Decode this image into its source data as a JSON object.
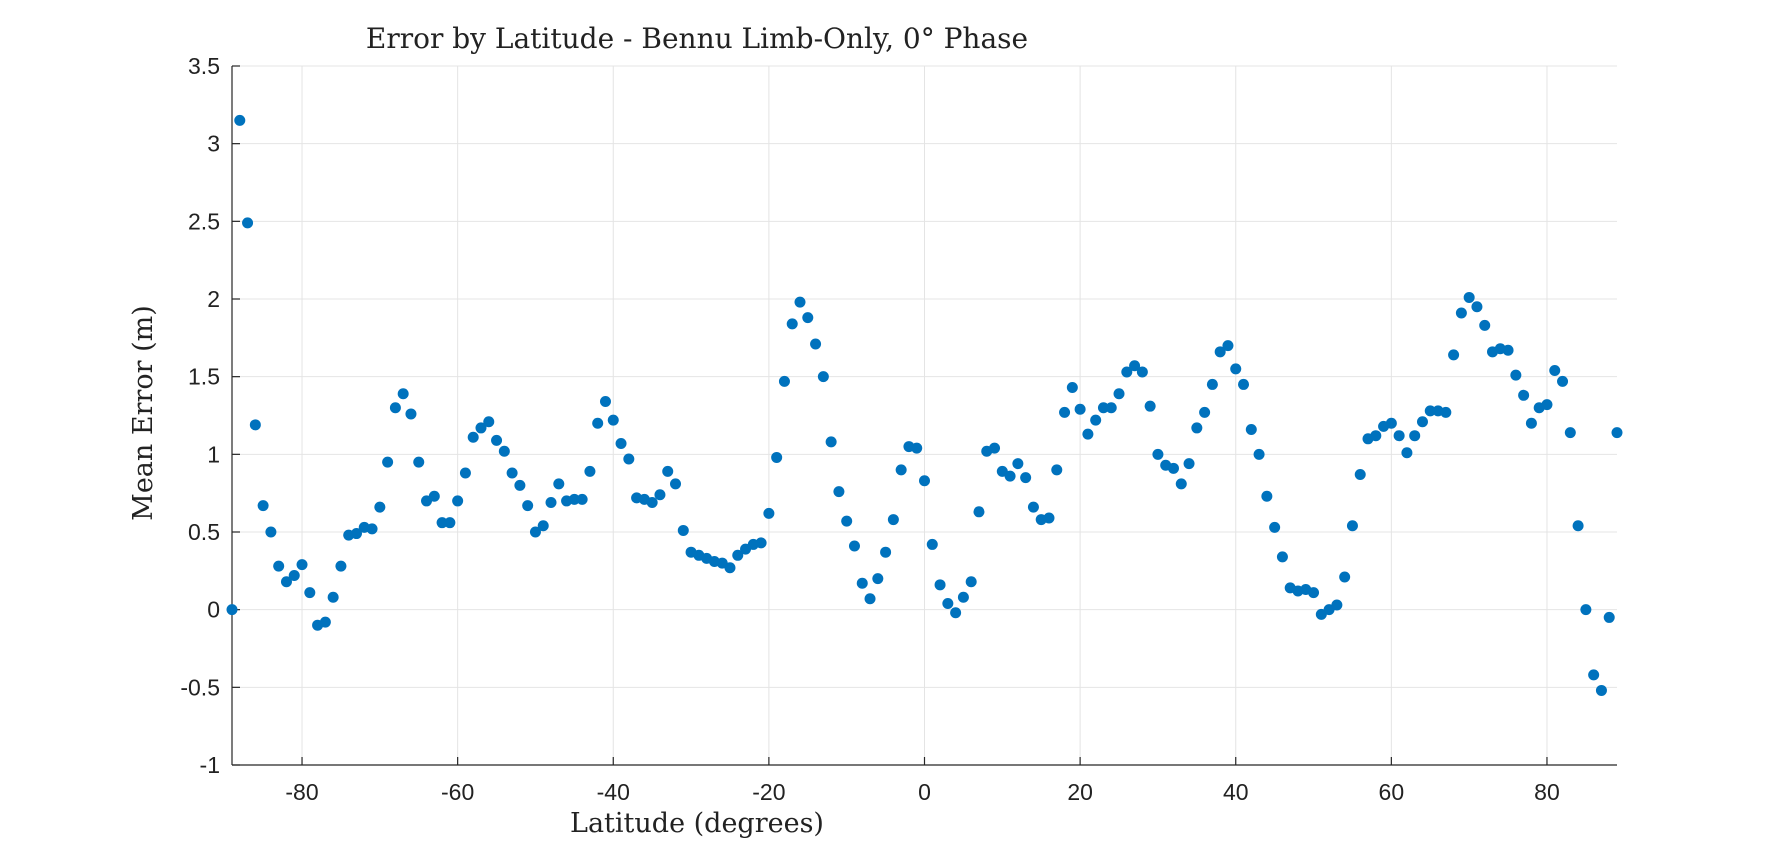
{
  "chart_data": {
    "type": "scatter",
    "title": "Error by Latitude - Bennu Limb-Only, 0° Phase",
    "xlabel": "Latitude (degrees)",
    "ylabel": "Mean Error (m)",
    "xlim": [
      -89,
      89
    ],
    "ylim": [
      -1,
      3.5
    ],
    "xticks": [
      -80,
      -60,
      -40,
      -20,
      0,
      20,
      40,
      60,
      80
    ],
    "yticks": [
      -1,
      -0.5,
      0,
      0.5,
      1,
      1.5,
      2,
      2.5,
      3,
      3.5
    ],
    "xtick_labels": [
      "-80",
      "-60",
      "-40",
      "-20",
      "0",
      "20",
      "40",
      "60",
      "80"
    ],
    "ytick_labels": [
      "-1",
      "-0.5",
      "0",
      "0.5",
      "1",
      "1.5",
      "2",
      "2.5",
      "3",
      "3.5"
    ],
    "grid": true,
    "color": "#0072BD",
    "series": [
      {
        "x": [
          -89,
          -88,
          -87,
          -86,
          -85,
          -84,
          -83,
          -82,
          -81,
          -80,
          -79,
          -78,
          -77,
          -76,
          -75,
          -74,
          -73,
          -72,
          -71,
          -70,
          -69,
          -68,
          -67,
          -66,
          -65,
          -64,
          -63,
          -62,
          -61,
          -60,
          -59,
          -58,
          -57,
          -56,
          -55,
          -54,
          -53,
          -52,
          -51,
          -50,
          -49,
          -48,
          -47,
          -46,
          -45,
          -44,
          -43,
          -42,
          -41,
          -40,
          -39,
          -38,
          -37,
          -36,
          -35,
          -34,
          -33,
          -32,
          -31,
          -30,
          -29,
          -28,
          -27,
          -26,
          -25,
          -24,
          -23,
          -22,
          -21,
          -20,
          -19,
          -18,
          -17,
          -16,
          -15,
          -14,
          -13,
          -12,
          -11,
          -10,
          -9,
          -8,
          -7,
          -6,
          -5,
          -4,
          -3,
          -2,
          -1,
          0,
          1,
          2,
          3,
          4,
          5,
          6,
          7,
          8,
          9,
          10,
          11,
          12,
          13,
          14,
          15,
          16,
          17,
          18,
          19,
          20,
          21,
          22,
          23,
          24,
          25,
          26,
          27,
          28,
          29,
          30,
          31,
          32,
          33,
          34,
          35,
          36,
          37,
          38,
          39,
          40,
          41,
          42,
          43,
          44,
          45,
          46,
          47,
          48,
          49,
          50,
          51,
          52,
          53,
          54,
          55,
          56,
          57,
          58,
          59,
          60,
          61,
          62,
          63,
          64,
          65,
          66,
          67,
          68,
          69,
          70,
          71,
          72,
          73,
          74,
          75,
          76,
          77,
          78,
          79,
          80,
          81,
          82,
          83,
          84,
          85,
          86,
          87,
          88,
          89
        ],
        "y": [
          0.0,
          3.15,
          2.49,
          1.19,
          0.67,
          0.5,
          0.28,
          0.18,
          0.22,
          0.29,
          0.11,
          -0.1,
          -0.08,
          0.08,
          0.28,
          0.48,
          0.49,
          0.53,
          0.52,
          0.66,
          0.95,
          1.3,
          1.39,
          1.26,
          0.95,
          0.7,
          0.73,
          0.56,
          0.56,
          0.7,
          0.88,
          1.11,
          1.17,
          1.21,
          1.09,
          1.02,
          0.88,
          0.8,
          0.67,
          0.5,
          0.54,
          0.69,
          0.81,
          0.7,
          0.71,
          0.71,
          0.89,
          1.2,
          1.34,
          1.22,
          1.07,
          0.97,
          0.72,
          0.71,
          0.69,
          0.74,
          0.89,
          0.81,
          0.51,
          0.37,
          0.35,
          0.33,
          0.31,
          0.3,
          0.27,
          0.35,
          0.39,
          0.42,
          0.43,
          0.62,
          0.98,
          1.47,
          1.84,
          1.98,
          1.88,
          1.71,
          1.5,
          1.08,
          0.76,
          0.57,
          0.41,
          0.17,
          0.07,
          0.2,
          0.37,
          0.58,
          0.9,
          1.05,
          1.04,
          0.83,
          0.42,
          0.16,
          0.04,
          -0.02,
          0.08,
          0.18,
          0.63,
          1.02,
          1.04,
          0.89,
          0.86,
          0.94,
          0.85,
          0.66,
          0.58,
          0.59,
          0.9,
          1.27,
          1.43,
          1.29,
          1.13,
          1.22,
          1.3,
          1.3,
          1.39,
          1.53,
          1.57,
          1.53,
          1.31,
          1.0,
          0.93,
          0.91,
          0.81,
          0.94,
          1.17,
          1.27,
          1.45,
          1.66,
          1.7,
          1.55,
          1.45,
          1.16,
          1.0,
          0.73,
          0.53,
          0.34,
          0.14,
          0.12,
          0.13,
          0.11,
          -0.03,
          0.0,
          0.03,
          0.21,
          0.54,
          0.87,
          1.1,
          1.12,
          1.18,
          1.2,
          1.12,
          1.01,
          1.12,
          1.21,
          1.28,
          1.28,
          1.27,
          1.64,
          1.91,
          2.01,
          1.95,
          1.83,
          1.66,
          1.68,
          1.67,
          1.51,
          1.38,
          1.2,
          1.3,
          1.32,
          1.54,
          1.47,
          1.14,
          0.54,
          0.0,
          -0.42,
          -0.52,
          -0.05,
          1.14
        ]
      }
    ]
  }
}
